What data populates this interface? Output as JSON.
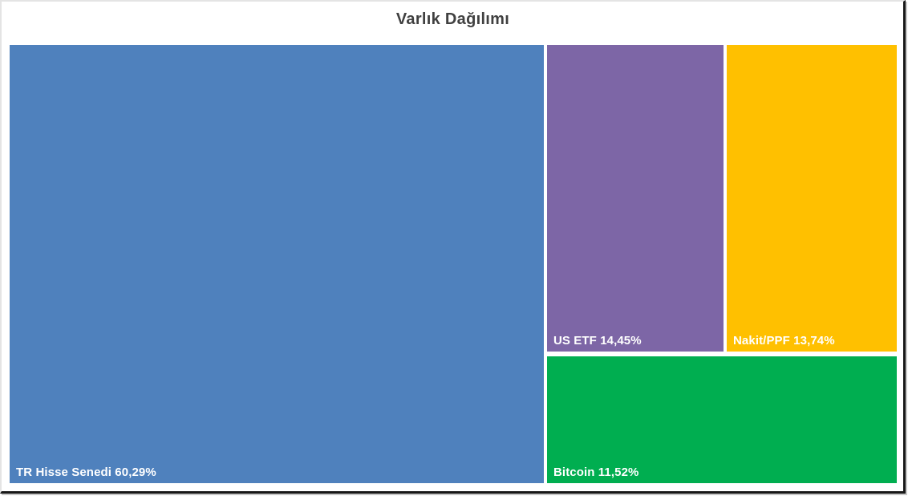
{
  "chart": {
    "title": "Varlık Dağılımı",
    "title_color": "#404040",
    "background": "#ffffff"
  },
  "chart_data": {
    "type": "treemap",
    "title": "Varlık Dağılımı",
    "categories": [
      "TR Hisse Senedi",
      "US ETF",
      "Nakit/PPF",
      "Bitcoin"
    ],
    "values": [
      60.29,
      14.45,
      13.74,
      11.52
    ],
    "unit": "%",
    "value_format": "comma-decimal",
    "legend": "none",
    "data_labels": "category-and-percent, bottom-left of tile, white bold",
    "colors": [
      "#4F81BD",
      "#7D66A6",
      "#FFC000",
      "#00AE50"
    ]
  },
  "tiles": [
    {
      "name": "TR Hisse Senedi",
      "value": 60.29,
      "label": "TR Hisse Senedi 60,29%",
      "color": "#4F81BD"
    },
    {
      "name": "US ETF",
      "value": 14.45,
      "label": "US ETF 14,45%",
      "color": "#7D66A6"
    },
    {
      "name": "Nakit/PPF",
      "value": 13.74,
      "label": "Nakit/PPF 13,74%",
      "color": "#FFC000"
    },
    {
      "name": "Bitcoin",
      "value": 11.52,
      "label": "Bitcoin 11,52%",
      "color": "#00AE50"
    }
  ]
}
